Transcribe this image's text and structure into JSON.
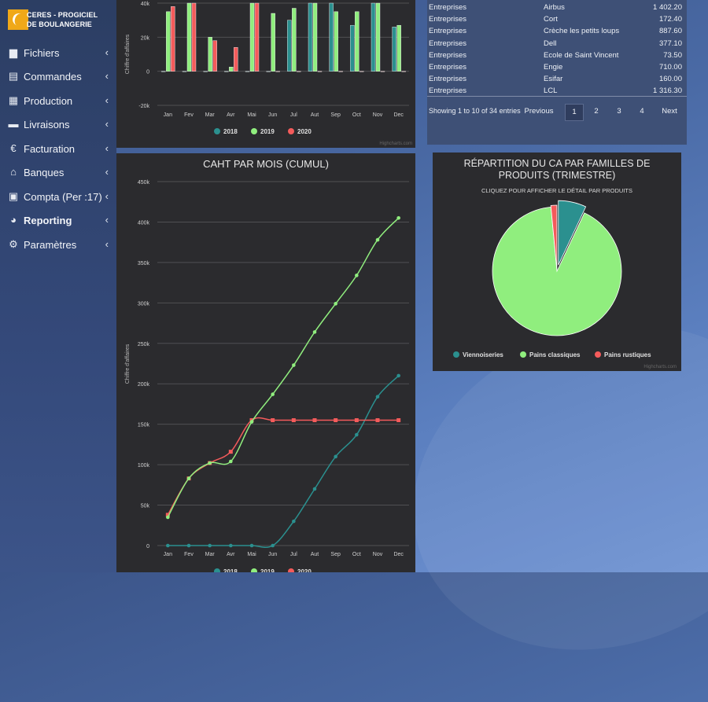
{
  "app": {
    "logo_line1": "CERES - PROGICIEL",
    "logo_line2": "DE BOULANGERIE"
  },
  "sidebar": {
    "items": [
      {
        "label": "Fichiers",
        "icon": "folder-icon",
        "active": false
      },
      {
        "label": "Commandes",
        "icon": "book-icon",
        "active": false
      },
      {
        "label": "Production",
        "icon": "factory-icon",
        "active": false
      },
      {
        "label": "Livraisons",
        "icon": "truck-icon",
        "active": false
      },
      {
        "label": "Facturation",
        "icon": "euro-icon",
        "active": false
      },
      {
        "label": "Banques",
        "icon": "bank-icon",
        "active": false
      },
      {
        "label": "Compta (Per :17)",
        "icon": "calculator-icon",
        "active": false
      },
      {
        "label": "Reporting",
        "icon": "pie-chart-icon",
        "active": true
      },
      {
        "label": "Paramètres",
        "icon": "gear-icon",
        "active": false
      }
    ]
  },
  "table": {
    "rows": [
      {
        "type": "Entreprises",
        "client": "Airbus",
        "amount": "1 402.20"
      },
      {
        "type": "Entreprises",
        "client": "Cort",
        "amount": "172.40"
      },
      {
        "type": "Entreprises",
        "client": "Crèche les petits loups",
        "amount": "887.60"
      },
      {
        "type": "Entreprises",
        "client": "Dell",
        "amount": "377.10"
      },
      {
        "type": "Entreprises",
        "client": "Ecole de Saint Vincent",
        "amount": "73.50"
      },
      {
        "type": "Entreprises",
        "client": "Engie",
        "amount": "710.00"
      },
      {
        "type": "Entreprises",
        "client": "Esifar",
        "amount": "160.00"
      },
      {
        "type": "Entreprises",
        "client": "LCL",
        "amount": "1 316.30"
      }
    ],
    "info": "Showing 1 to 10 of 34 entries",
    "pagination": {
      "previous": "Previous",
      "pages": [
        "1",
        "2",
        "3",
        "4"
      ],
      "current": "1",
      "next": "Next"
    }
  },
  "credits": "Highcharts.com",
  "chart_data": [
    {
      "type": "bar",
      "title": "",
      "ylabel": "Chiffre d'affaires",
      "ylim": [
        -20000,
        40000
      ],
      "yticks": [
        "40k",
        "20k",
        "0",
        "-20k"
      ],
      "categories": [
        "Jan",
        "Fev",
        "Mar",
        "Avr",
        "Mai",
        "Jun",
        "Jul",
        "Aut",
        "Sep",
        "Oct",
        "Nov",
        "Dec"
      ],
      "series": [
        {
          "name": "2018",
          "color": "#2b908f",
          "values": [
            0,
            0,
            0,
            0,
            0,
            0,
            30000,
            40000,
            40000,
            27000,
            40000,
            26000
          ]
        },
        {
          "name": "2019",
          "color": "#90ee7e",
          "values": [
            35000,
            40000,
            20000,
            2500,
            40000,
            34000,
            37000,
            40000,
            35000,
            35000,
            40000,
            27000
          ]
        },
        {
          "name": "2020",
          "color": "#f45b5b",
          "values": [
            38000,
            40000,
            18000,
            14000,
            40000,
            0,
            0,
            0,
            0,
            0,
            0,
            0
          ]
        }
      ]
    },
    {
      "type": "line",
      "title": "CAHT PAR MOIS (CUMUL)",
      "ylabel": "Chiffre d'affaires",
      "ylim": [
        0,
        450000
      ],
      "yticks": [
        "0",
        "50k",
        "100k",
        "150k",
        "200k",
        "250k",
        "300k",
        "350k",
        "400k",
        "450k"
      ],
      "categories": [
        "Jan",
        "Fev",
        "Mar",
        "Avr",
        "Mai",
        "Jun",
        "Jul",
        "Aut",
        "Sep",
        "Oct",
        "Nov",
        "Dec"
      ],
      "series": [
        {
          "name": "2018",
          "color": "#2b908f",
          "values": [
            0,
            0,
            0,
            0,
            0,
            0,
            30000,
            70000,
            110000,
            137000,
            184000,
            210000
          ]
        },
        {
          "name": "2019",
          "color": "#90ee7e",
          "values": [
            35000,
            83000,
            102000,
            104000,
            153000,
            187000,
            223000,
            264000,
            299000,
            334000,
            378000,
            405000
          ]
        },
        {
          "name": "2020",
          "color": "#f45b5b",
          "values": [
            38000,
            83000,
            102000,
            116000,
            155000,
            155000,
            155000,
            155000,
            155000,
            155000,
            155000,
            155000
          ]
        }
      ]
    },
    {
      "type": "pie",
      "title": "RÉPARTITION DU CA PAR FAMILLES DE PRODUITS (TRIMESTRE)",
      "subtitle": "CLIQUEZ POUR AFFICHER LE DÉTAIL PAR PRODUITS",
      "slices": [
        {
          "name": "Viennoiseries",
          "value": 7,
          "color": "#2b908f"
        },
        {
          "name": "Pains classiques",
          "value": 91.5,
          "color": "#90ee7e"
        },
        {
          "name": "Pains rustiques",
          "value": 1.5,
          "color": "#f45b5b"
        }
      ]
    }
  ]
}
